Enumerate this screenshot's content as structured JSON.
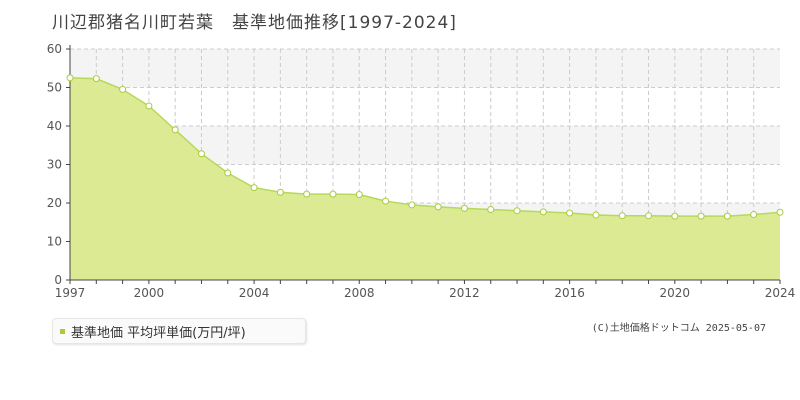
{
  "title": "川辺郡猪名川町若葉　基準地価推移[1997-2024]",
  "legend": {
    "label": "基準地価 平均坪単価(万円/坪)"
  },
  "credit": "(C)土地価格ドットコム 2025-05-07",
  "colors": {
    "area_fill": "#dceb93",
    "line": "#b6d85c",
    "marker_fill": "#ffffff",
    "marker_stroke": "#a8cc3c",
    "grid": "#cccccc",
    "band": "#f4f4f4",
    "axis": "#444444"
  },
  "chart_data": {
    "type": "area",
    "title": "川辺郡猪名川町若葉　基準地価推移[1997-2024]",
    "xlabel": "",
    "ylabel": "",
    "xlim": [
      1997,
      2024
    ],
    "ylim": [
      0,
      60
    ],
    "x_ticks": [
      "1997",
      "2000",
      "2004",
      "2008",
      "2012",
      "2016",
      "2020",
      "2024"
    ],
    "y_ticks": [
      "0",
      "10",
      "20",
      "30",
      "40",
      "50",
      "60"
    ],
    "grid": true,
    "legend_position": "bottom-left",
    "x": [
      1997,
      1998,
      1999,
      2000,
      2001,
      2002,
      2003,
      2004,
      2005,
      2006,
      2007,
      2008,
      2009,
      2010,
      2011,
      2012,
      2013,
      2014,
      2015,
      2016,
      2017,
      2018,
      2019,
      2020,
      2021,
      2022,
      2023,
      2024
    ],
    "series": [
      {
        "name": "基準地価 平均坪単価(万円/坪)",
        "values": [
          52.5,
          52.3,
          49.5,
          45.2,
          39.0,
          32.8,
          27.8,
          24.0,
          22.8,
          22.3,
          22.3,
          22.2,
          20.5,
          19.5,
          19.0,
          18.6,
          18.3,
          18.0,
          17.7,
          17.4,
          16.9,
          16.7,
          16.7,
          16.6,
          16.6,
          16.6,
          17.0,
          17.6
        ]
      }
    ]
  }
}
